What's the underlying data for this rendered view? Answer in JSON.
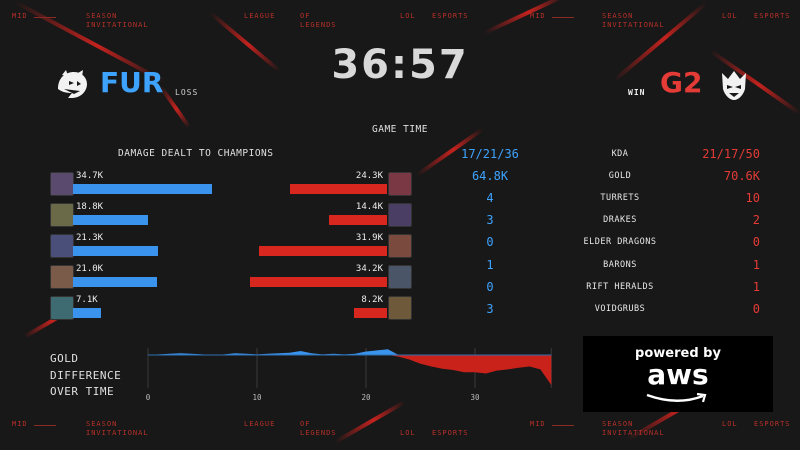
{
  "band": {
    "mid": "MID",
    "season": "SEASON",
    "invitational": "INVITATIONAL",
    "league": "LEAGUE",
    "of": "OF",
    "legends": "LEGENDS",
    "lol": "LOL",
    "esports": "ESPORTS"
  },
  "header": {
    "left_team": {
      "abbr": "FUR",
      "result": "LOSS",
      "color": "#3ea3ff",
      "logo": "panther-logo-icon"
    },
    "right_team": {
      "abbr": "G2",
      "result": "WIN",
      "color": "#e43b36",
      "logo": "g2-samurai-logo-icon"
    },
    "timer": "36:57",
    "timer_label": "GAME TIME"
  },
  "damage": {
    "title": "DAMAGE DEALT TO CHAMPIONS",
    "left": [
      {
        "value": "34.7K",
        "amount": 34.7
      },
      {
        "value": "18.8K",
        "amount": 18.8
      },
      {
        "value": "21.3K",
        "amount": 21.3
      },
      {
        "value": "21.0K",
        "amount": 21.0
      },
      {
        "value": "7.1K",
        "amount": 7.1
      }
    ],
    "right": [
      {
        "value": "24.3K",
        "amount": 24.3
      },
      {
        "value": "14.4K",
        "amount": 14.4
      },
      {
        "value": "31.9K",
        "amount": 31.9
      },
      {
        "value": "34.2K",
        "amount": 34.2
      },
      {
        "value": "8.2K",
        "amount": 8.2
      }
    ]
  },
  "stats": [
    {
      "left": "17/21/36",
      "label": "KDA",
      "right": "21/17/50"
    },
    {
      "left": "64.8K",
      "label": "GOLD",
      "right": "70.6K"
    },
    {
      "left": "4",
      "label": "TURRETS",
      "right": "10"
    },
    {
      "left": "3",
      "label": "DRAKES",
      "right": "2"
    },
    {
      "left": "0",
      "label": "ELDER DRAGONS",
      "right": "0"
    },
    {
      "left": "1",
      "label": "BARONS",
      "right": "1"
    },
    {
      "left": "0",
      "label": "RIFT HERALDS",
      "right": "1"
    },
    {
      "left": "3",
      "label": "VOIDGRUBS",
      "right": "0"
    }
  ],
  "gold_diff": {
    "label_line1": "GOLD",
    "label_line2": "DIFFERENCE",
    "label_line3": "OVER TIME",
    "ticks": [
      "0",
      "10",
      "20",
      "30"
    ],
    "minutes": [
      0,
      1,
      2,
      3,
      4,
      5,
      6,
      7,
      8,
      9,
      10,
      11,
      12,
      13,
      14,
      15,
      16,
      17,
      18,
      19,
      20,
      21,
      22,
      23,
      24,
      25,
      26,
      27,
      28,
      29,
      30,
      31,
      32,
      33,
      34,
      35,
      36,
      37
    ],
    "diff": [
      0,
      100,
      200,
      300,
      200,
      100,
      0,
      100,
      300,
      200,
      100,
      200,
      300,
      400,
      700,
      300,
      100,
      200,
      100,
      200,
      600,
      800,
      1000,
      -300,
      -800,
      -1500,
      -2000,
      -2400,
      -2600,
      -3000,
      -3000,
      -3200,
      -2700,
      -2500,
      -2200,
      -2000,
      -2500,
      -5200
    ]
  },
  "sponsor": {
    "line1": "powered by",
    "line2": "aws"
  }
}
